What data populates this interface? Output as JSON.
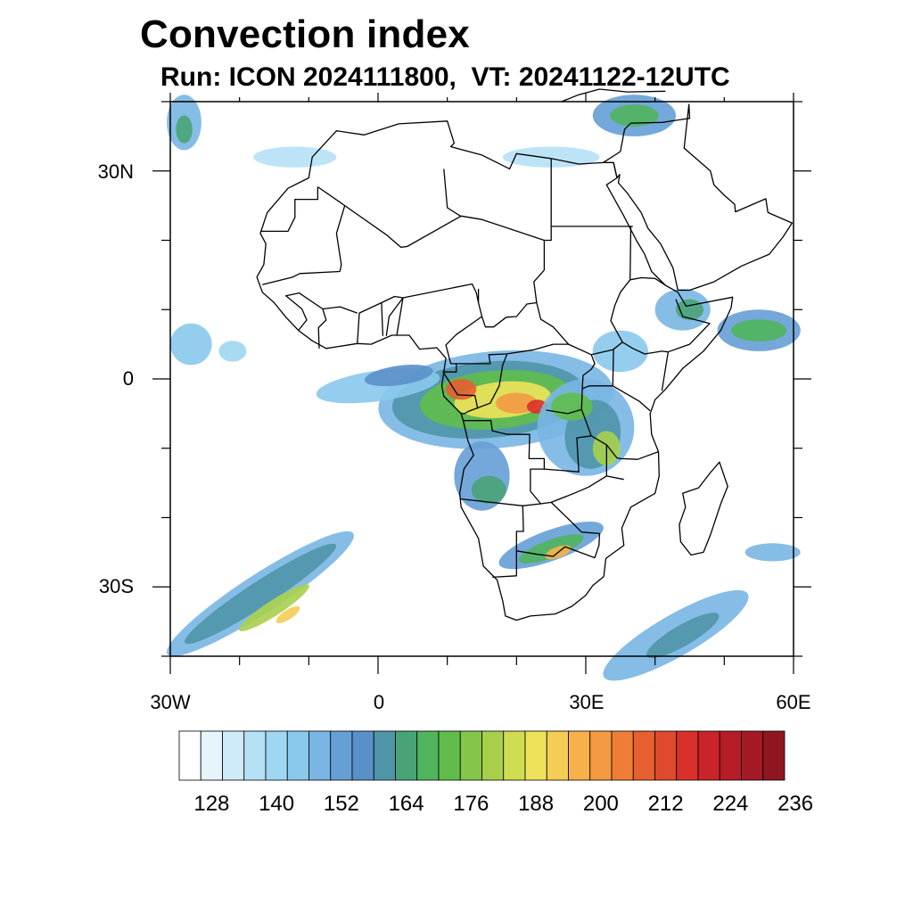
{
  "title": "Convection index",
  "subtitle": "Run: ICON 2024111800,  VT: 20241122-12UTC",
  "axes": {
    "lat_labels": [
      "30N",
      "0",
      "30S"
    ],
    "lon_labels": [
      "30W",
      "0",
      "30E",
      "60E"
    ],
    "lon_range": [
      -30,
      60
    ],
    "lat_range": [
      -40,
      40
    ]
  },
  "colorbar": {
    "labels": [
      "128",
      "140",
      "152",
      "164",
      "176",
      "188",
      "200",
      "212",
      "224",
      "236"
    ],
    "colors": [
      "#ffffff",
      "#e6f4fc",
      "#cfeaf8",
      "#b6e0f6",
      "#9fd6f2",
      "#8ac8ec",
      "#79b6e3",
      "#669fd6",
      "#5a90c8",
      "#4f95a8",
      "#4aa377",
      "#4fb45c",
      "#61bc4b",
      "#84c64a",
      "#a8cf4c",
      "#cfdd52",
      "#ede35a",
      "#f5cd55",
      "#f6b14b",
      "#f39a42",
      "#ef7d38",
      "#e65f30",
      "#df4a2c",
      "#d9302b",
      "#c8242a",
      "#b61d28",
      "#a31a24",
      "#8f1620"
    ]
  },
  "map_features": {
    "land_outline": "Africa, Arabian Peninsula, Madagascar",
    "fields": [
      "Congo basin",
      "East Africa",
      "South Atlantic frontal band",
      "Southern Africa",
      "Arabian Sea"
    ]
  }
}
